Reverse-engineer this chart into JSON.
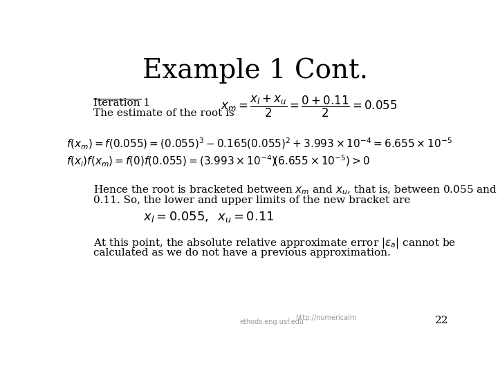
{
  "title": "Example 1 Cont.",
  "title_fontsize": 28,
  "bg_color": "#ffffff",
  "text_color": "#000000",
  "slide_number": "22",
  "footer_left": "ethods.eng.usf.edu",
  "footer_right": "http://numericalm",
  "iteration_label": "Iteration 1",
  "iteration_sublabel": "The estimate of the root is"
}
